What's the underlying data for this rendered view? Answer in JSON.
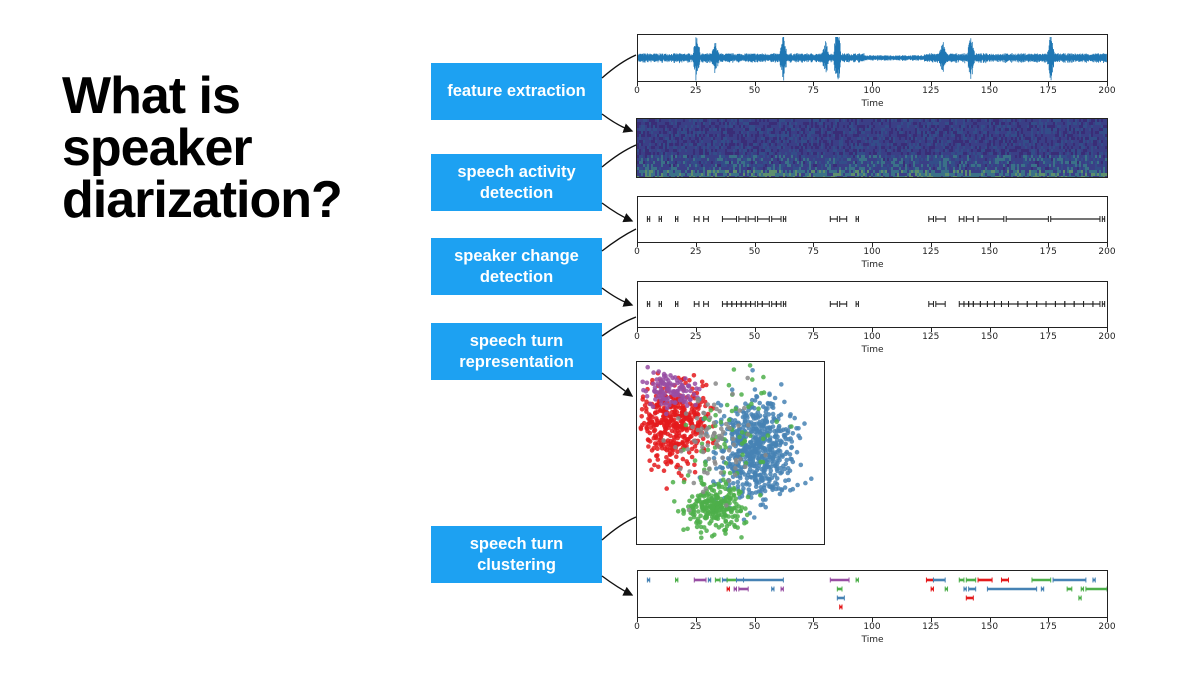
{
  "slide": {
    "title": "What is speaker diarization?",
    "box_color": "#1da1f2"
  },
  "steps": [
    {
      "label": "feature extraction"
    },
    {
      "label": "speech activity\ndetection"
    },
    {
      "label": "speaker change\ndetection"
    },
    {
      "label": "speech turn\nrepresentation"
    },
    {
      "label": "speech turn\nclustering"
    }
  ],
  "chart_data": [
    {
      "type": "line",
      "name": "waveform",
      "xlabel": "Time",
      "xlim": [
        0,
        200
      ],
      "xticks": [
        "0",
        "25",
        "50",
        "75",
        "100",
        "125",
        "150",
        "175",
        "200"
      ],
      "color": "#1f77b4"
    },
    {
      "type": "heatmap",
      "name": "spectrogram",
      "colormap": [
        "#3b1f6b",
        "#2d5a8c",
        "#3a9a8a",
        "#7bd15a"
      ]
    },
    {
      "type": "timeline",
      "name": "speech activity",
      "xlabel": "Time",
      "xlim": [
        0,
        200
      ],
      "xticks": [
        "0",
        "25",
        "50",
        "75",
        "100",
        "125",
        "150",
        "175",
        "200"
      ],
      "segments": [
        [
          4,
          5
        ],
        [
          9,
          10
        ],
        [
          16,
          17
        ],
        [
          24,
          26
        ],
        [
          28,
          30
        ],
        [
          36,
          42
        ],
        [
          43,
          46
        ],
        [
          47,
          50
        ],
        [
          51,
          56
        ],
        [
          57,
          61
        ],
        [
          62,
          63
        ],
        [
          82,
          85
        ],
        [
          86,
          89
        ],
        [
          93,
          94
        ],
        [
          124,
          126
        ],
        [
          127,
          131
        ],
        [
          137,
          139
        ],
        [
          140,
          143
        ],
        [
          145,
          156
        ],
        [
          157,
          175
        ],
        [
          176,
          197
        ],
        [
          198,
          199
        ]
      ]
    },
    {
      "type": "timeline",
      "name": "speaker change",
      "xlabel": "Time",
      "xlim": [
        0,
        200
      ],
      "xticks": [
        "0",
        "25",
        "50",
        "75",
        "100",
        "125",
        "150",
        "175",
        "200"
      ],
      "segments": [
        [
          4,
          5
        ],
        [
          9,
          10
        ],
        [
          16,
          17
        ],
        [
          24,
          26
        ],
        [
          28,
          30
        ],
        [
          36,
          38
        ],
        [
          38,
          40
        ],
        [
          40,
          42
        ],
        [
          42,
          44
        ],
        [
          44,
          46
        ],
        [
          46,
          48
        ],
        [
          48,
          50
        ],
        [
          51,
          53
        ],
        [
          53,
          56
        ],
        [
          57,
          59
        ],
        [
          59,
          61
        ],
        [
          62,
          63
        ],
        [
          82,
          85
        ],
        [
          86,
          89
        ],
        [
          93,
          94
        ],
        [
          124,
          126
        ],
        [
          127,
          131
        ],
        [
          137,
          139
        ],
        [
          139,
          141
        ],
        [
          141,
          143
        ],
        [
          143,
          146
        ],
        [
          146,
          149
        ],
        [
          149,
          152
        ],
        [
          152,
          155
        ],
        [
          155,
          158
        ],
        [
          158,
          162
        ],
        [
          162,
          166
        ],
        [
          166,
          170
        ],
        [
          170,
          174
        ],
        [
          174,
          178
        ],
        [
          178,
          182
        ],
        [
          182,
          186
        ],
        [
          186,
          190
        ],
        [
          190,
          194
        ],
        [
          194,
          197
        ],
        [
          198,
          199
        ]
      ]
    },
    {
      "type": "scatter",
      "name": "speech turn embedding",
      "clusters": [
        {
          "color": "#e41a1c",
          "cx": 0.2,
          "cy": 0.33,
          "sx": 0.09,
          "sy": 0.11,
          "n": 420
        },
        {
          "color": "#984ea3",
          "cx": 0.16,
          "cy": 0.16,
          "sx": 0.07,
          "sy": 0.05,
          "n": 110
        },
        {
          "color": "#4682b4",
          "cx": 0.63,
          "cy": 0.47,
          "sx": 0.1,
          "sy": 0.14,
          "n": 600
        },
        {
          "color": "#4daf4a",
          "cx": 0.42,
          "cy": 0.8,
          "sx": 0.07,
          "sy": 0.07,
          "n": 260
        },
        {
          "color": "#4daf4a",
          "cx": 0.48,
          "cy": 0.38,
          "sx": 0.12,
          "sy": 0.18,
          "n": 70
        },
        {
          "color": "#888888",
          "cx": 0.4,
          "cy": 0.45,
          "sx": 0.12,
          "sy": 0.15,
          "n": 80
        }
      ]
    },
    {
      "type": "timeline",
      "name": "clustering",
      "xlabel": "Time",
      "xlim": [
        0,
        200
      ],
      "xticks": [
        "0",
        "25",
        "50",
        "75",
        "100",
        "125",
        "150",
        "175",
        "200"
      ],
      "rows": [
        [
          [
            4,
            5,
            "#4682b4"
          ],
          [
            16,
            17,
            "#4daf4a"
          ],
          [
            24,
            29,
            "#984ea3"
          ],
          [
            30,
            31,
            "#4682b4"
          ],
          [
            33,
            35,
            "#4daf4a"
          ],
          [
            36,
            38,
            "#4682b4"
          ],
          [
            38,
            42,
            "#4daf4a"
          ],
          [
            42,
            45,
            "#4682b4"
          ],
          [
            45,
            62,
            "#4682b4"
          ],
          [
            82,
            90,
            "#984ea3"
          ],
          [
            93,
            94,
            "#4daf4a"
          ],
          [
            123,
            126,
            "#e41a1c"
          ],
          [
            126,
            131,
            "#4682b4"
          ],
          [
            137,
            139,
            "#4daf4a"
          ],
          [
            140,
            144,
            "#4daf4a"
          ],
          [
            145,
            151,
            "#e41a1c"
          ],
          [
            155,
            158,
            "#e41a1c"
          ],
          [
            168,
            176,
            "#4daf4a"
          ],
          [
            177,
            191,
            "#4682b4"
          ],
          [
            194,
            195,
            "#4682b4"
          ]
        ],
        [
          [
            38,
            39,
            "#e41a1c"
          ],
          [
            41,
            42,
            "#984ea3"
          ],
          [
            43,
            47,
            "#984ea3"
          ],
          [
            57,
            58,
            "#4682b4"
          ],
          [
            61,
            62,
            "#984ea3"
          ],
          [
            85,
            87,
            "#4daf4a"
          ],
          [
            125,
            126,
            "#e41a1c"
          ],
          [
            131,
            132,
            "#4daf4a"
          ],
          [
            139,
            140,
            "#4682b4"
          ],
          [
            141,
            144,
            "#4682b4"
          ],
          [
            149,
            170,
            "#4682b4"
          ],
          [
            172,
            173,
            "#4682b4"
          ],
          [
            183,
            185,
            "#4daf4a"
          ],
          [
            189,
            190,
            "#4daf4a"
          ],
          [
            191,
            200,
            "#4daf4a"
          ]
        ],
        [
          [
            85,
            88,
            "#4682b4"
          ],
          [
            140,
            143,
            "#e41a1c"
          ],
          [
            188,
            189,
            "#4daf4a"
          ]
        ],
        [
          [
            86,
            87,
            "#e41a1c"
          ]
        ]
      ]
    }
  ]
}
